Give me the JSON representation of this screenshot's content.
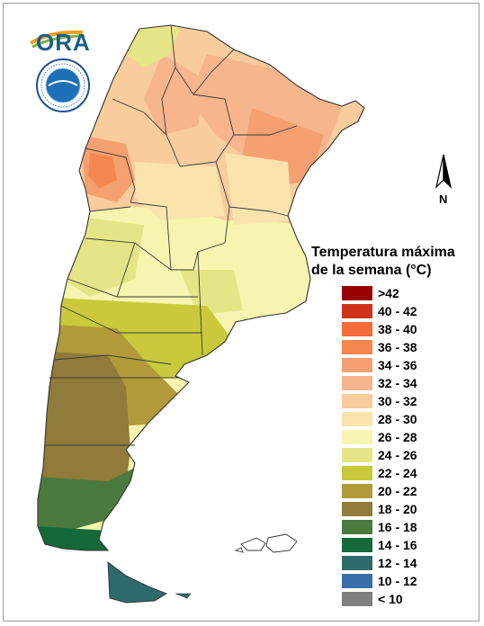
{
  "logo": {
    "text": "ORA"
  },
  "compass": {
    "label": "N"
  },
  "legend": {
    "title_line1": "Temperatura máxima",
    "title_line2": "de la semana (°C)",
    "items": [
      {
        "label": ">42",
        "color": "#990000"
      },
      {
        "label": "40 - 42",
        "color": "#cc3318"
      },
      {
        "label": "38 - 40",
        "color": "#f46c3a"
      },
      {
        "label": "36 - 38",
        "color": "#f5874e"
      },
      {
        "label": "34 - 36",
        "color": "#f4a070"
      },
      {
        "label": "32 - 34",
        "color": "#f6b58c"
      },
      {
        "label": "30 - 32",
        "color": "#f8cc9d"
      },
      {
        "label": "28 - 30",
        "color": "#fbe3ad"
      },
      {
        "label": "26 - 28",
        "color": "#f6f4ae"
      },
      {
        "label": "24 - 26",
        "color": "#e5e587"
      },
      {
        "label": "22 - 24",
        "color": "#c9c93b"
      },
      {
        "label": "20 - 22",
        "color": "#b09a3a"
      },
      {
        "label": "18 - 20",
        "color": "#917b3a"
      },
      {
        "label": "16 - 18",
        "color": "#4b7a3e"
      },
      {
        "label": "14 - 16",
        "color": "#136a38"
      },
      {
        "label": "12 - 14",
        "color": "#2f6a6a"
      },
      {
        "label": "10 - 12",
        "color": "#3a6ea8"
      },
      {
        "label": "< 10",
        "color": "#808080"
      }
    ]
  }
}
